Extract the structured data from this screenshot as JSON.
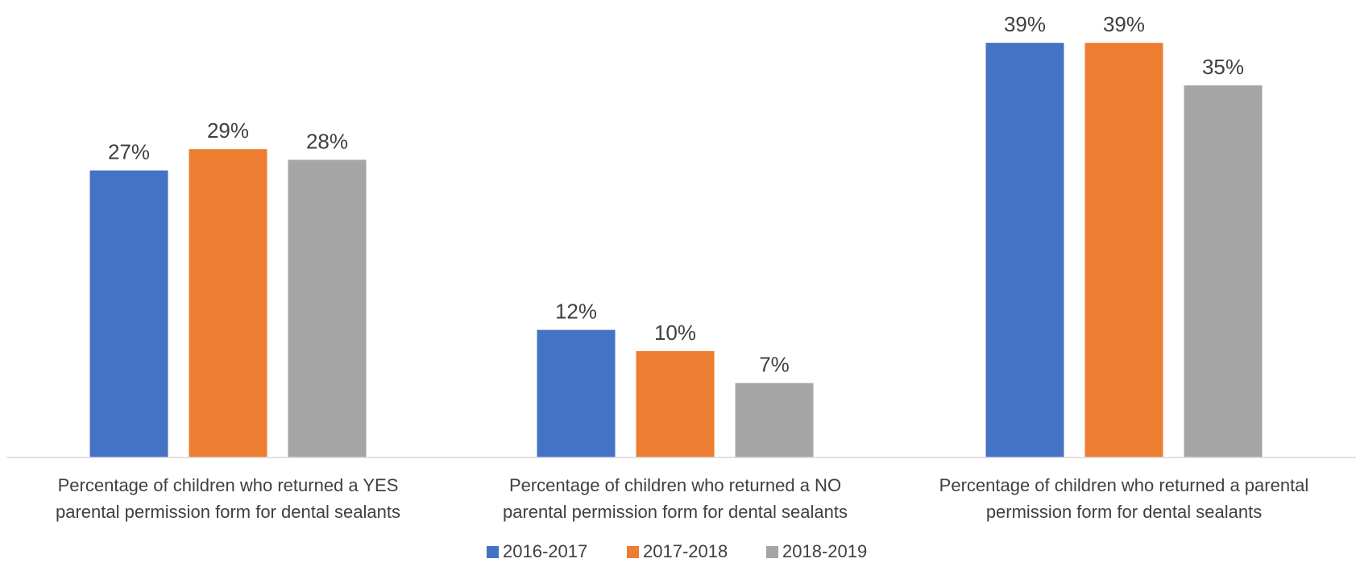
{
  "chart_data": {
    "type": "bar",
    "title": "",
    "xlabel": "",
    "ylabel": "",
    "ylim": [
      0,
      40
    ],
    "grid": false,
    "legend_position": "bottom",
    "value_suffix": "%",
    "categories": [
      [
        "Percentage of children who returned a YES",
        "parental permission form for dental sealants"
      ],
      [
        "Percentage of children who returned a NO",
        "parental permission form for dental sealants"
      ],
      [
        "Percentage of children who returned a parental",
        "permission form for dental sealants"
      ]
    ],
    "series": [
      {
        "name": "2016-2017",
        "color": "#4472C4",
        "values": [
          27,
          12,
          39
        ]
      },
      {
        "name": "2017-2018",
        "color": "#ED7D31",
        "values": [
          29,
          10,
          39
        ]
      },
      {
        "name": "2018-2019",
        "color": "#A5A5A5",
        "values": [
          28,
          7,
          35
        ]
      }
    ]
  }
}
